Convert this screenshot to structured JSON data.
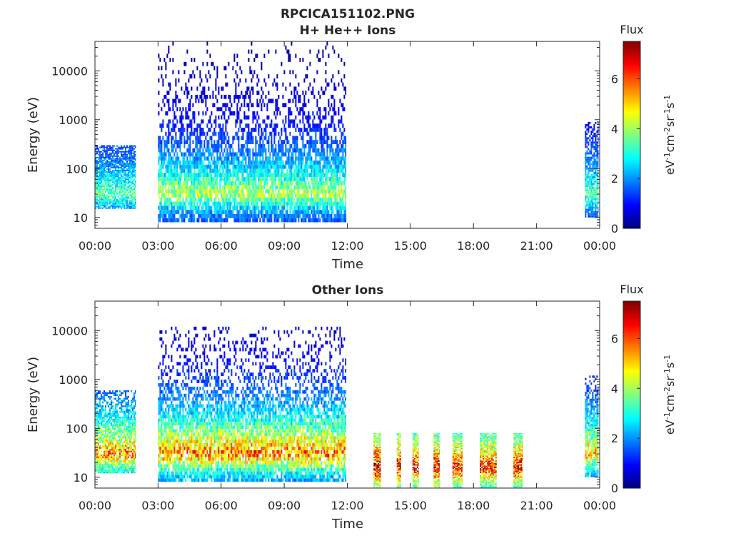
{
  "figure_title": "RPCICA151102.PNG",
  "chart_data": [
    {
      "type": "heatmap",
      "title": "H+ He++ Ions",
      "xlabel": "Time",
      "ylabel": "Energy (eV)",
      "x_ticks": [
        "00:00",
        "03:00",
        "06:00",
        "09:00",
        "12:00",
        "15:00",
        "18:00",
        "21:00",
        "00:00"
      ],
      "xlim_hours": [
        0,
        24
      ],
      "y_scale": "log",
      "y_ticks": [
        10,
        100,
        1000,
        10000
      ],
      "y_tick_labels": [
        "10",
        "100",
        "1000",
        "10000"
      ],
      "ylim": [
        6,
        40000
      ],
      "colorbar": {
        "label": "Flux",
        "unit": "eV-1cm-2sr-1s-1",
        "ticks": [
          0,
          2,
          4,
          6
        ],
        "range": [
          0,
          7.5
        ],
        "colormap": "jet"
      },
      "data_segments": [
        {
          "t_start": 0.0,
          "t_end": 1.95,
          "emin": 15,
          "emax": 300,
          "peak_flux": 3.6,
          "peak_e": 30
        },
        {
          "t_start": 3.0,
          "t_end": 11.95,
          "emin": 8,
          "emax": 40000,
          "peak_flux": 4.2,
          "peak_e": 30
        },
        {
          "t_start": 23.3,
          "t_end": 23.95,
          "emin": 10,
          "emax": 900,
          "peak_flux": 3.6,
          "peak_e": 30
        }
      ]
    },
    {
      "type": "heatmap",
      "title": "Other Ions",
      "xlabel": "Time",
      "ylabel": "Energy (eV)",
      "x_ticks": [
        "00:00",
        "03:00",
        "06:00",
        "09:00",
        "12:00",
        "15:00",
        "18:00",
        "21:00",
        "00:00"
      ],
      "xlim_hours": [
        0,
        24
      ],
      "y_scale": "log",
      "y_ticks": [
        10,
        100,
        1000,
        10000
      ],
      "y_tick_labels": [
        "10",
        "100",
        "1000",
        "10000"
      ],
      "ylim": [
        6,
        40000
      ],
      "colorbar": {
        "label": "Flux",
        "unit": "eV-1cm-2sr-1s-1",
        "ticks": [
          0,
          2,
          4,
          6
        ],
        "range": [
          0,
          7.5
        ],
        "colormap": "jet"
      },
      "data_segments": [
        {
          "t_start": 0.0,
          "t_end": 1.95,
          "emin": 12,
          "emax": 600,
          "peak_flux": 5.6,
          "peak_e": 30
        },
        {
          "t_start": 3.0,
          "t_end": 11.95,
          "emin": 8,
          "emax": 12000,
          "peak_flux": 5.8,
          "peak_e": 30
        },
        {
          "t_start": 13.25,
          "t_end": 13.6,
          "emin": 6,
          "emax": 80,
          "peak_flux": 7.3,
          "peak_e": 15
        },
        {
          "t_start": 14.35,
          "t_end": 14.55,
          "emin": 6,
          "emax": 80,
          "peak_flux": 7.0,
          "peak_e": 15
        },
        {
          "t_start": 15.1,
          "t_end": 15.4,
          "emin": 6,
          "emax": 80,
          "peak_flux": 6.8,
          "peak_e": 15
        },
        {
          "t_start": 16.1,
          "t_end": 16.4,
          "emin": 6,
          "emax": 80,
          "peak_flux": 6.8,
          "peak_e": 15
        },
        {
          "t_start": 17.0,
          "t_end": 17.5,
          "emin": 6,
          "emax": 80,
          "peak_flux": 6.6,
          "peak_e": 15
        },
        {
          "t_start": 18.3,
          "t_end": 19.1,
          "emin": 6,
          "emax": 80,
          "peak_flux": 6.5,
          "peak_e": 15
        },
        {
          "t_start": 19.9,
          "t_end": 20.35,
          "emin": 6,
          "emax": 80,
          "peak_flux": 6.6,
          "peak_e": 15
        },
        {
          "t_start": 23.3,
          "t_end": 23.95,
          "emin": 10,
          "emax": 1200,
          "peak_flux": 5.2,
          "peak_e": 30
        }
      ]
    }
  ]
}
